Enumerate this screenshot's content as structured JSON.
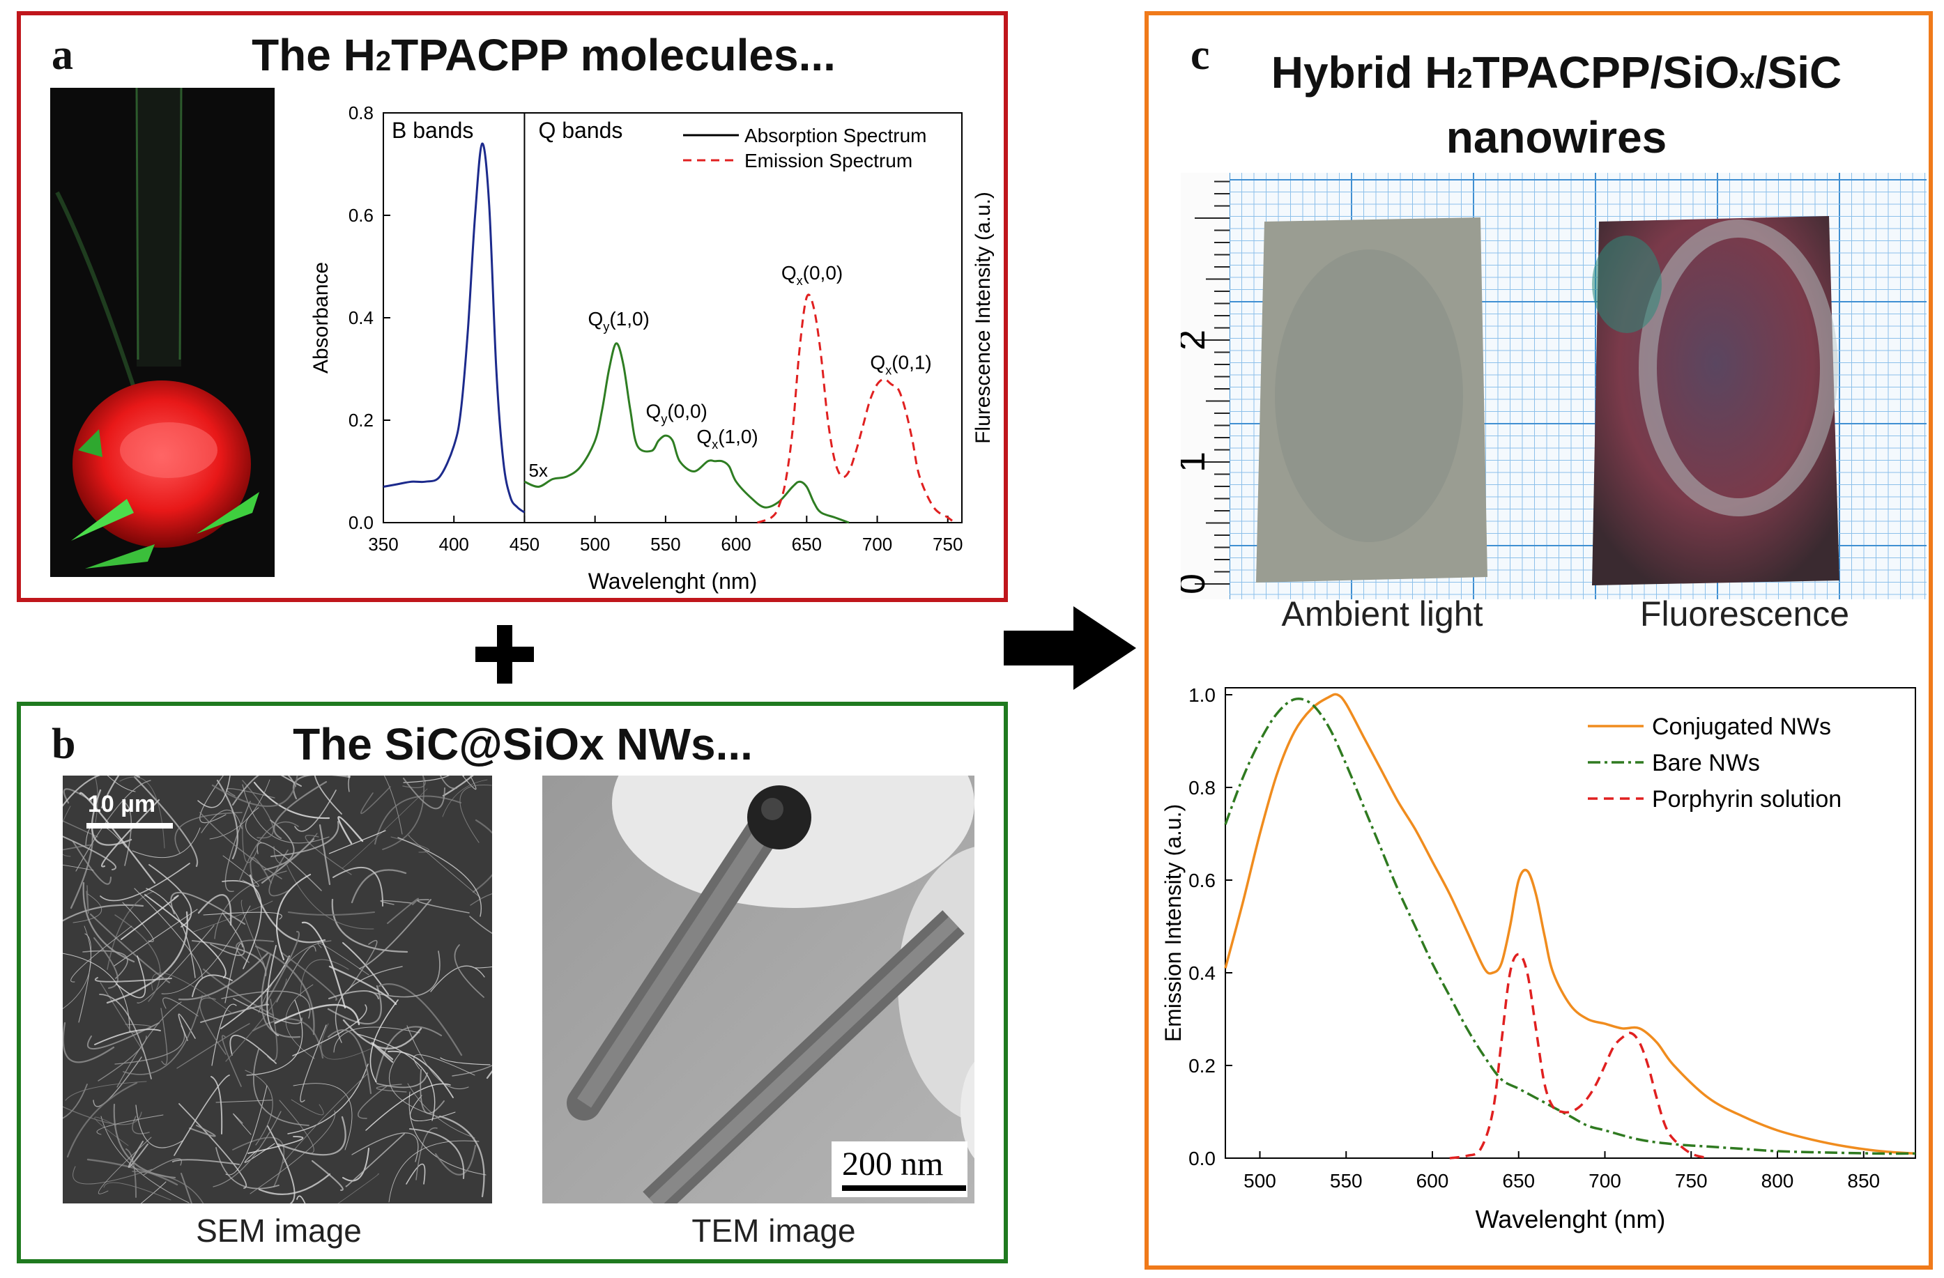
{
  "panel_a": {
    "letter": "a",
    "title_pre": "The H",
    "title_sub": "2",
    "title_post": "TPACPP molecules...",
    "chart": {
      "y_ticks": [
        "0.0",
        "0.2",
        "0.4",
        "0.6",
        "0.8"
      ],
      "x_ticks": [
        "350",
        "400",
        "450",
        "500",
        "550",
        "600",
        "650",
        "700",
        "750"
      ],
      "ylabel": "Absorbance",
      "ylabel_right": "Flurescence Intensity (a.u.)",
      "xlabel": "Wavelenght (nm)",
      "label_b": "B bands",
      "label_q": "Q bands",
      "legend_abs": "Absorption Spectrum",
      "legend_em": "Emission Spectrum",
      "mag": "5x",
      "peaks": {
        "qy10_main": "Q",
        "qy10_sub": "y",
        "qy10_tail": "(1,0)",
        "qy00_main": "Q",
        "qy00_sub": "y",
        "qy00_tail": "(0,0)",
        "qx10_main": "Q",
        "qx10_sub": "x",
        "qx10_tail": "(1,0)",
        "qx00_main": "Q",
        "qx00_sub": "x",
        "qx00_tail": "(0,0)",
        "qx01_main": "Q",
        "qx01_sub": "x",
        "qx01_tail": "(0,1)"
      }
    }
  },
  "panel_b": {
    "letter": "b",
    "title": "The SiC@SiOx NWs...",
    "sem_scale": "10 µm",
    "tem_scale": "200 nm",
    "sem_caption": "SEM image",
    "tem_caption": "TEM image"
  },
  "panel_c": {
    "letter": "c",
    "title_l1_a": "Hybrid H",
    "title_l1_sub1": "2",
    "title_l1_b": "TPACPP/SiO",
    "title_l1_sub2": "x",
    "title_l1_c": "/SiC",
    "title_l2": "nanowires",
    "ruler_ticks": [
      "0",
      "1",
      "2"
    ],
    "caption_ambient": "Ambient light",
    "caption_fluor": "Fluorescence",
    "chart": {
      "y_ticks": [
        "0.0",
        "0.2",
        "0.4",
        "0.6",
        "0.8",
        "1.0"
      ],
      "x_ticks": [
        "500",
        "550",
        "600",
        "650",
        "700",
        "750",
        "800",
        "850"
      ],
      "ylabel": "Emission Intensity (a.u.)",
      "xlabel": "Wavelenght (nm)",
      "legend": [
        "Conjugated NWs",
        "Bare NWs",
        "Porphyrin solution"
      ]
    }
  },
  "colors": {
    "panel_a_border": "#c0161c",
    "panel_b_border": "#1f7a1f",
    "panel_c_border": "#f07a1a",
    "absorption_b": "#1c2a8c",
    "absorption_q": "#2e7d22",
    "emission": "#e02020",
    "conjugated": "#f08c1e",
    "bare": "#2f7a20",
    "porphyrin": "#e02020"
  },
  "chart_data": [
    {
      "type": "line",
      "xlabel": "Wavelenght (nm)",
      "ylabel": "Absorbance",
      "xlim": [
        350,
        760
      ],
      "ylim": [
        0,
        0.8
      ],
      "series": [
        {
          "name": "Absorption Spectrum",
          "x": [
            350,
            360,
            370,
            380,
            390,
            400,
            405,
            410,
            415,
            420,
            425,
            430,
            435,
            440,
            445,
            450
          ],
          "y": [
            0.07,
            0.075,
            0.08,
            0.08,
            0.09,
            0.15,
            0.22,
            0.38,
            0.6,
            0.74,
            0.62,
            0.3,
            0.12,
            0.05,
            0.03,
            0.02
          ]
        },
        {
          "x": [
            450,
            460,
            470,
            480,
            490,
            500,
            505,
            510,
            515,
            520,
            525,
            530,
            540,
            545,
            550,
            555,
            560,
            570,
            580,
            585,
            590,
            595,
            600,
            610,
            620,
            630,
            640,
            645,
            650,
            655,
            660,
            670,
            680
          ],
          "y": [
            0.08,
            0.07,
            0.085,
            0.09,
            0.11,
            0.16,
            0.22,
            0.3,
            0.35,
            0.31,
            0.22,
            0.15,
            0.14,
            0.16,
            0.17,
            0.16,
            0.12,
            0.1,
            0.12,
            0.12,
            0.12,
            0.11,
            0.08,
            0.05,
            0.03,
            0.04,
            0.07,
            0.08,
            0.07,
            0.04,
            0.02,
            0.01,
            0.0
          ]
        },
        {
          "name": "Emission Spectrum",
          "x": [
            615,
            625,
            630,
            635,
            640,
            645,
            650,
            655,
            660,
            665,
            670,
            675,
            680,
            685,
            690,
            695,
            700,
            705,
            710,
            715,
            720,
            725,
            730,
            740,
            750,
            755
          ],
          "y": [
            0.0,
            0.01,
            0.03,
            0.08,
            0.18,
            0.34,
            0.44,
            0.42,
            0.33,
            0.2,
            0.12,
            0.09,
            0.1,
            0.14,
            0.19,
            0.24,
            0.27,
            0.28,
            0.27,
            0.26,
            0.22,
            0.16,
            0.09,
            0.03,
            0.01,
            0.0
          ]
        }
      ]
    },
    {
      "type": "line",
      "xlabel": "Wavelenght (nm)",
      "ylabel": "Emission Intensity (a.u.)",
      "xlim": [
        480,
        880
      ],
      "ylim": [
        0,
        1.0
      ],
      "legend": "top-right",
      "series": [
        {
          "name": "Conjugated NWs",
          "x": [
            480,
            490,
            500,
            510,
            520,
            530,
            540,
            545,
            550,
            560,
            570,
            580,
            590,
            600,
            610,
            620,
            630,
            635,
            640,
            645,
            650,
            655,
            660,
            665,
            670,
            680,
            690,
            700,
            710,
            720,
            730,
            740,
            760,
            780,
            800,
            820,
            840,
            860,
            880
          ],
          "y": [
            0.41,
            0.55,
            0.7,
            0.83,
            0.92,
            0.97,
            0.995,
            1.0,
            0.98,
            0.91,
            0.84,
            0.77,
            0.71,
            0.64,
            0.57,
            0.49,
            0.41,
            0.4,
            0.42,
            0.5,
            0.6,
            0.62,
            0.57,
            0.48,
            0.4,
            0.33,
            0.3,
            0.29,
            0.28,
            0.28,
            0.25,
            0.2,
            0.13,
            0.09,
            0.06,
            0.04,
            0.025,
            0.015,
            0.01
          ]
        },
        {
          "name": "Bare NWs",
          "x": [
            480,
            490,
            500,
            510,
            520,
            530,
            540,
            550,
            560,
            570,
            580,
            590,
            600,
            610,
            620,
            630,
            640,
            650,
            660,
            670,
            680,
            690,
            700,
            720,
            740,
            760,
            780,
            800,
            830,
            860,
            880
          ],
          "y": [
            0.72,
            0.82,
            0.9,
            0.96,
            0.99,
            0.98,
            0.93,
            0.85,
            0.76,
            0.67,
            0.58,
            0.5,
            0.42,
            0.35,
            0.28,
            0.22,
            0.17,
            0.15,
            0.13,
            0.11,
            0.09,
            0.07,
            0.06,
            0.04,
            0.03,
            0.025,
            0.02,
            0.015,
            0.012,
            0.01,
            0.01
          ]
        },
        {
          "name": "Porphyrin solution",
          "x": [
            610,
            620,
            628,
            635,
            640,
            645,
            650,
            655,
            660,
            665,
            670,
            675,
            680,
            685,
            690,
            695,
            700,
            705,
            710,
            715,
            720,
            725,
            730,
            735,
            740,
            750,
            760
          ],
          "y": [
            0.0,
            0.005,
            0.02,
            0.1,
            0.25,
            0.4,
            0.44,
            0.4,
            0.28,
            0.16,
            0.11,
            0.1,
            0.1,
            0.11,
            0.13,
            0.16,
            0.2,
            0.24,
            0.26,
            0.27,
            0.25,
            0.2,
            0.13,
            0.07,
            0.04,
            0.01,
            0.0
          ]
        }
      ]
    }
  ]
}
